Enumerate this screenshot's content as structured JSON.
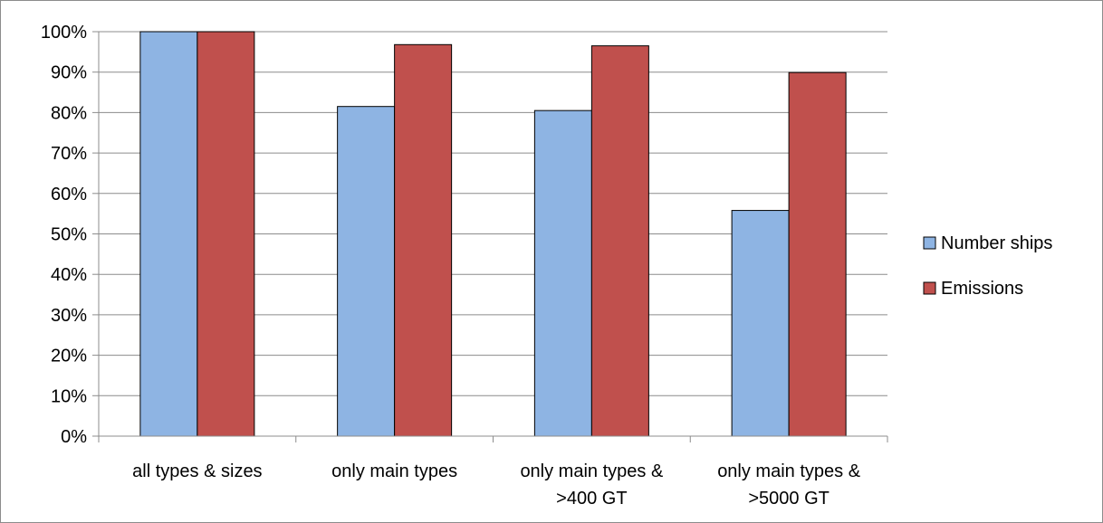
{
  "chart_data": {
    "type": "bar",
    "categories": [
      [
        "all types & sizes"
      ],
      [
        "only main types"
      ],
      [
        "only main types &",
        ">400 GT"
      ],
      [
        "only main types &",
        ">5000 GT"
      ]
    ],
    "series": [
      {
        "name": "Number ships",
        "values": [
          100,
          81.5,
          80.5,
          55.8
        ],
        "color": "#8eb4e3"
      },
      {
        "name": "Emissions",
        "values": [
          100,
          96.8,
          96.5,
          89.9
        ],
        "color": "#c0504d"
      }
    ],
    "y_ticks": [
      "0%",
      "10%",
      "20%",
      "30%",
      "40%",
      "50%",
      "60%",
      "70%",
      "80%",
      "90%",
      "100%"
    ],
    "ylim": [
      0,
      100
    ],
    "grid": true,
    "legend_position": "right"
  }
}
